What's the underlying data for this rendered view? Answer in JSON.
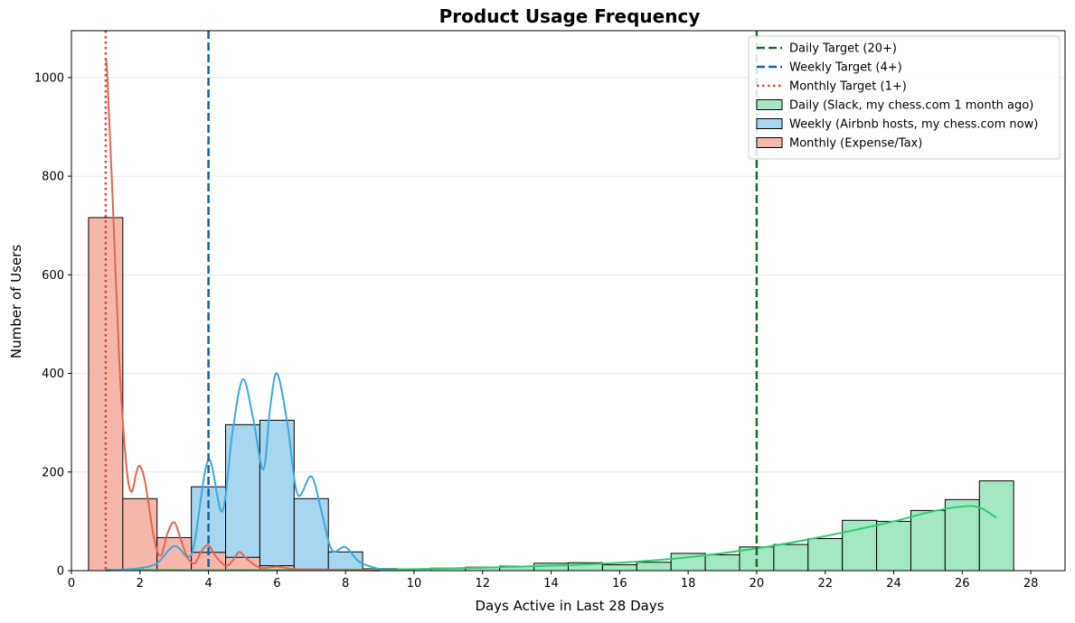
{
  "chart_data": {
    "type": "histogram",
    "title": "Product Usage Frequency",
    "xlabel": "Days Active in Last 28 Days",
    "ylabel": "Number of Users",
    "xlim": [
      0,
      29
    ],
    "ylim": [
      0,
      1095
    ],
    "xticks": [
      0,
      2,
      4,
      6,
      8,
      10,
      12,
      14,
      16,
      18,
      20,
      22,
      24,
      26,
      28
    ],
    "yticks": [
      0,
      200,
      400,
      600,
      800,
      1000
    ],
    "grid": "y",
    "legend_position": "top-right",
    "bin_width": 1,
    "series": [
      {
        "name": "Daily (Slack, my chess.com 1 month ago)",
        "color": "#2ecc71",
        "fill": "#a3e8c3",
        "bins": [
          {
            "x": 1,
            "y": 9
          },
          {
            "x": 2,
            "y": 3
          },
          {
            "x": 3,
            "y": 3
          },
          {
            "x": 4,
            "y": 3
          },
          {
            "x": 5,
            "y": 3
          },
          {
            "x": 6,
            "y": 3
          },
          {
            "x": 7,
            "y": 3
          },
          {
            "x": 8,
            "y": 3
          },
          {
            "x": 9,
            "y": 3
          },
          {
            "x": 10,
            "y": 3
          },
          {
            "x": 11,
            "y": 5
          },
          {
            "x": 12,
            "y": 7
          },
          {
            "x": 13,
            "y": 9
          },
          {
            "x": 14,
            "y": 15
          },
          {
            "x": 15,
            "y": 16
          },
          {
            "x": 16,
            "y": 12
          },
          {
            "x": 17,
            "y": 17
          },
          {
            "x": 18,
            "y": 35
          },
          {
            "x": 19,
            "y": 32
          },
          {
            "x": 20,
            "y": 48
          },
          {
            "x": 21,
            "y": 53
          },
          {
            "x": 22,
            "y": 65
          },
          {
            "x": 23,
            "y": 102
          },
          {
            "x": 24,
            "y": 100
          },
          {
            "x": 25,
            "y": 122
          },
          {
            "x": 26,
            "y": 144
          },
          {
            "x": 27,
            "y": 182
          }
        ],
        "kde": [
          [
            1,
            2
          ],
          [
            4,
            1
          ],
          [
            8,
            2
          ],
          [
            10,
            3
          ],
          [
            12,
            6
          ],
          [
            14,
            10
          ],
          [
            16,
            16
          ],
          [
            18,
            27
          ],
          [
            20,
            45
          ],
          [
            22,
            70
          ],
          [
            24,
            100
          ],
          [
            25,
            118
          ],
          [
            26,
            130
          ],
          [
            26.5,
            128
          ],
          [
            27,
            107
          ]
        ]
      },
      {
        "name": "Weekly (Airbnb hosts, my chess.com now)",
        "color": "#3ea8dc",
        "fill": "#a6d6f0",
        "bins": [
          {
            "x": 1,
            "y": 0
          },
          {
            "x": 2,
            "y": 8
          },
          {
            "x": 3,
            "y": 36
          },
          {
            "x": 4,
            "y": 170
          },
          {
            "x": 5,
            "y": 296
          },
          {
            "x": 6,
            "y": 305
          },
          {
            "x": 7,
            "y": 146
          },
          {
            "x": 8,
            "y": 38
          },
          {
            "x": 9,
            "y": 4
          }
        ],
        "kde": [
          [
            1,
            0
          ],
          [
            1.5,
            2
          ],
          [
            2,
            5
          ],
          [
            2.5,
            15
          ],
          [
            3,
            50
          ],
          [
            3.4,
            28
          ],
          [
            3.6,
            60
          ],
          [
            4,
            225
          ],
          [
            4.4,
            120
          ],
          [
            4.7,
            280
          ],
          [
            5,
            388
          ],
          [
            5.3,
            310
          ],
          [
            5.6,
            205
          ],
          [
            5.8,
            330
          ],
          [
            6,
            400
          ],
          [
            6.3,
            300
          ],
          [
            6.6,
            155
          ],
          [
            7,
            191
          ],
          [
            7.3,
            120
          ],
          [
            7.6,
            42
          ],
          [
            8,
            48
          ],
          [
            8.4,
            18
          ],
          [
            9,
            3
          ],
          [
            9.4,
            1
          ]
        ]
      },
      {
        "name": "Monthly (Expense/Tax)",
        "color": "#e06650",
        "fill": "#f5b7ac",
        "bins": [
          {
            "x": 1,
            "y": 716
          },
          {
            "x": 2,
            "y": 146
          },
          {
            "x": 3,
            "y": 67
          },
          {
            "x": 4,
            "y": 37
          },
          {
            "x": 5,
            "y": 27
          },
          {
            "x": 6,
            "y": 10
          },
          {
            "x": 7,
            "y": 3
          }
        ],
        "kde": [
          [
            1,
            1040
          ],
          [
            1.05,
            1000
          ],
          [
            1.2,
            760
          ],
          [
            1.4,
            420
          ],
          [
            1.6,
            215
          ],
          [
            1.75,
            160
          ],
          [
            1.9,
            200
          ],
          [
            2,
            212
          ],
          [
            2.15,
            180
          ],
          [
            2.4,
            70
          ],
          [
            2.6,
            30
          ],
          [
            2.8,
            75
          ],
          [
            3,
            98
          ],
          [
            3.2,
            62
          ],
          [
            3.4,
            25
          ],
          [
            3.6,
            15
          ],
          [
            3.8,
            40
          ],
          [
            4,
            52
          ],
          [
            4.2,
            30
          ],
          [
            4.5,
            10
          ],
          [
            4.7,
            20
          ],
          [
            4.9,
            38
          ],
          [
            5.1,
            25
          ],
          [
            5.5,
            6
          ],
          [
            6,
            8
          ],
          [
            6.5,
            3
          ],
          [
            7,
            2
          ],
          [
            8,
            1
          ],
          [
            9,
            0
          ]
        ]
      }
    ],
    "target_lines": [
      {
        "name": "Daily Target (20+)",
        "x": 20,
        "color": "#1e6b2f",
        "style": "dashed"
      },
      {
        "name": "Weekly Target (4+)",
        "x": 4,
        "color": "#1560a8",
        "style": "dashed"
      },
      {
        "name": "Monthly Target (1+)",
        "x": 1,
        "color": "#d24a3a",
        "style": "dotted"
      }
    ]
  }
}
